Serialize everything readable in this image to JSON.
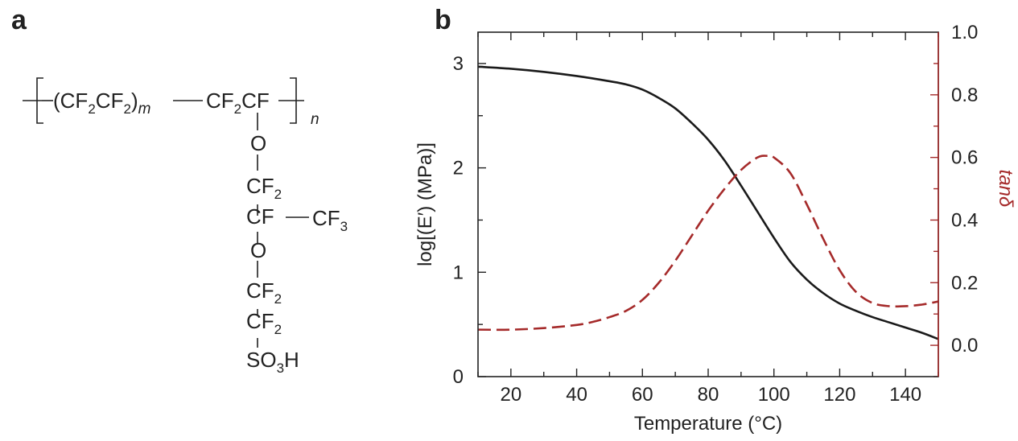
{
  "panel_a": {
    "label": "a",
    "formula": {
      "backbone_left": "(CF",
      "sub2": "2",
      "cf": "CF",
      "close_paren": ")",
      "m": "m",
      "cf2cf_cf": "CF",
      "cf2cf_cf2": "CF",
      "n": "n",
      "side_chain": [
        {
          "text": "O",
          "sub": ""
        },
        {
          "text": "CF",
          "sub": "2"
        },
        {
          "text": "CF",
          "sub": ""
        },
        {
          "text": "O",
          "sub": ""
        },
        {
          "text": "CF",
          "sub": "2"
        },
        {
          "text": "CF",
          "sub": "2"
        }
      ],
      "cf3_text": "CF",
      "cf3_sub": "3",
      "so3h_so": "SO",
      "so3h_sub": "3",
      "so3h_h": "H"
    }
  },
  "chart_data": {
    "label": "b",
    "type": "line",
    "xlabel": "Temperature (°C)",
    "ylabel_left": "log[(E′) (MPa)]",
    "ylabel_right": "tanδ",
    "xlim": [
      10,
      150
    ],
    "ylim_left": [
      0,
      3.3
    ],
    "ylim_right": [
      -0.1,
      1.0
    ],
    "x_ticks": [
      20,
      40,
      60,
      80,
      100,
      120,
      140
    ],
    "y_left_ticks": [
      0,
      1,
      2,
      3
    ],
    "y_right_ticks": [
      "0.0",
      "0.2",
      "0.4",
      "0.6",
      "0.8",
      "1.0"
    ],
    "series": [
      {
        "axis": "left",
        "color": "#1a1a1a",
        "style": "solid",
        "x": [
          10,
          20,
          30,
          40,
          50,
          55,
          60,
          65,
          70,
          75,
          80,
          85,
          90,
          95,
          100,
          105,
          110,
          115,
          120,
          125,
          130,
          135,
          140,
          145,
          150
        ],
        "y": [
          2.97,
          2.95,
          2.92,
          2.88,
          2.83,
          2.8,
          2.75,
          2.67,
          2.57,
          2.43,
          2.27,
          2.07,
          1.83,
          1.58,
          1.33,
          1.1,
          0.93,
          0.8,
          0.7,
          0.63,
          0.57,
          0.52,
          0.47,
          0.42,
          0.36
        ]
      },
      {
        "axis": "right",
        "color": "#a52a2a",
        "style": "dashed",
        "x": [
          10,
          20,
          30,
          40,
          45,
          50,
          55,
          60,
          65,
          70,
          75,
          80,
          85,
          90,
          95,
          98,
          100,
          105,
          110,
          115,
          120,
          125,
          130,
          135,
          140,
          145,
          150
        ],
        "y": [
          0.05,
          0.05,
          0.055,
          0.065,
          0.075,
          0.09,
          0.11,
          0.145,
          0.2,
          0.27,
          0.35,
          0.43,
          0.5,
          0.56,
          0.6,
          0.605,
          0.6,
          0.55,
          0.45,
          0.34,
          0.24,
          0.17,
          0.135,
          0.125,
          0.125,
          0.13,
          0.14
        ]
      }
    ]
  }
}
